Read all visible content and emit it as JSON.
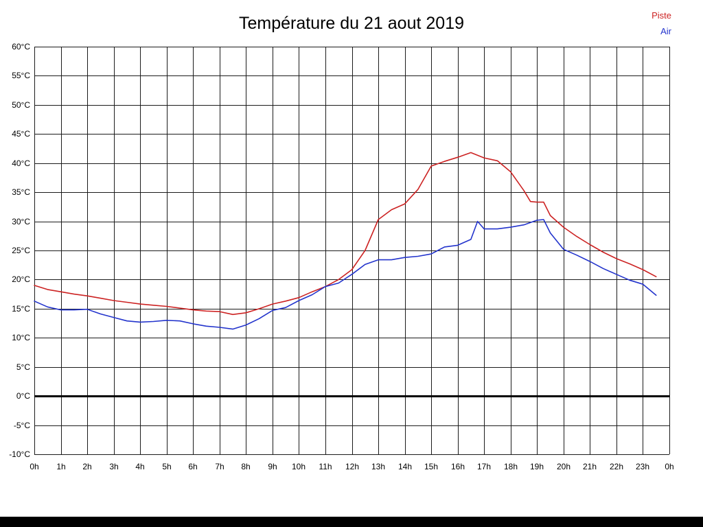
{
  "title": "Température du 21 aout 2019",
  "legend": {
    "items": [
      {
        "label": "Piste",
        "color": "#cc2222"
      },
      {
        "label": "Air",
        "color": "#2233cc"
      }
    ]
  },
  "chart_data": {
    "type": "line",
    "title": "Température du 21 aout 2019",
    "xlabel": "",
    "ylabel": "",
    "xlim": [
      0,
      24
    ],
    "ylim": [
      -10,
      60
    ],
    "grid": true,
    "grid_color": "#1a1a1a",
    "legend_position": "top-right",
    "x_ticks": [
      0,
      1,
      2,
      3,
      4,
      5,
      6,
      7,
      8,
      9,
      10,
      11,
      12,
      13,
      14,
      15,
      16,
      17,
      18,
      19,
      20,
      21,
      22,
      23,
      24
    ],
    "x_tick_labels": [
      "0h",
      "1h",
      "2h",
      "3h",
      "4h",
      "5h",
      "6h",
      "7h",
      "8h",
      "9h",
      "10h",
      "11h",
      "12h",
      "13h",
      "14h",
      "15h",
      "16h",
      "17h",
      "18h",
      "19h",
      "20h",
      "21h",
      "22h",
      "23h",
      "0h"
    ],
    "y_ticks": [
      60,
      55,
      50,
      45,
      40,
      35,
      30,
      25,
      20,
      15,
      10,
      5,
      0,
      -5,
      -10
    ],
    "y_tick_labels": [
      "60°C",
      "55°C",
      "50°C",
      "45°C",
      "40°C",
      "35°C",
      "30°C",
      "25°C",
      "20°C",
      "15°C",
      "10°C",
      "5°C",
      "0°C",
      "-5°C",
      "-10°C"
    ],
    "zero_line": {
      "y": 0,
      "color": "#000000",
      "width": 3
    },
    "series": [
      {
        "name": "Piste",
        "color": "#cc2222",
        "x": [
          0,
          0.5,
          1,
          1.5,
          2,
          2.5,
          3,
          3.5,
          4,
          4.5,
          5,
          5.5,
          6,
          6.5,
          7,
          7.5,
          8,
          8.5,
          9,
          9.5,
          10,
          10.5,
          11,
          11.5,
          12,
          12.5,
          13,
          13.5,
          14,
          14.5,
          15,
          15.5,
          16,
          16.5,
          17,
          17.5,
          18,
          18.5,
          18.75,
          19,
          19.25,
          19.5,
          20,
          20.5,
          21,
          21.5,
          22,
          22.5,
          23,
          23.5
        ],
        "values": [
          19.0,
          18.3,
          17.9,
          17.5,
          17.2,
          16.8,
          16.4,
          16.1,
          15.8,
          15.6,
          15.4,
          15.1,
          14.8,
          14.6,
          14.5,
          14.0,
          14.3,
          15.0,
          15.8,
          16.3,
          16.9,
          17.9,
          18.8,
          20.0,
          21.7,
          25.0,
          30.3,
          32.0,
          33.0,
          35.5,
          39.5,
          40.3,
          41.0,
          41.8,
          40.9,
          40.4,
          38.5,
          35.3,
          33.4,
          33.3,
          33.3,
          31.0,
          29.0,
          27.4,
          26.0,
          24.7,
          23.6,
          22.7,
          21.7,
          20.5
        ]
      },
      {
        "name": "Air",
        "color": "#2233cc",
        "x": [
          0,
          0.5,
          1,
          1.5,
          2,
          2.5,
          3,
          3.5,
          4,
          4.5,
          5,
          5.5,
          6,
          6.5,
          7,
          7.5,
          8,
          8.5,
          9,
          9.5,
          10,
          10.5,
          11,
          11.5,
          12,
          12.5,
          13,
          13.5,
          14,
          14.5,
          15,
          15.5,
          16,
          16.5,
          16.75,
          17,
          17.5,
          18,
          18.5,
          19,
          19.25,
          19.5,
          20,
          20.5,
          21,
          21.5,
          22,
          22.5,
          23,
          23.5
        ],
        "values": [
          16.3,
          15.3,
          14.8,
          14.8,
          14.9,
          14.1,
          13.5,
          12.9,
          12.7,
          12.8,
          13.0,
          12.9,
          12.4,
          12.0,
          11.8,
          11.5,
          12.2,
          13.3,
          14.7,
          15.2,
          16.4,
          17.4,
          18.8,
          19.4,
          20.9,
          22.6,
          23.4,
          23.4,
          23.8,
          24.0,
          24.4,
          25.6,
          25.9,
          26.9,
          30.0,
          28.7,
          28.7,
          29.0,
          29.4,
          30.2,
          30.3,
          28.0,
          25.2,
          24.2,
          23.1,
          21.9,
          20.9,
          19.9,
          19.2,
          17.3
        ]
      }
    ]
  }
}
